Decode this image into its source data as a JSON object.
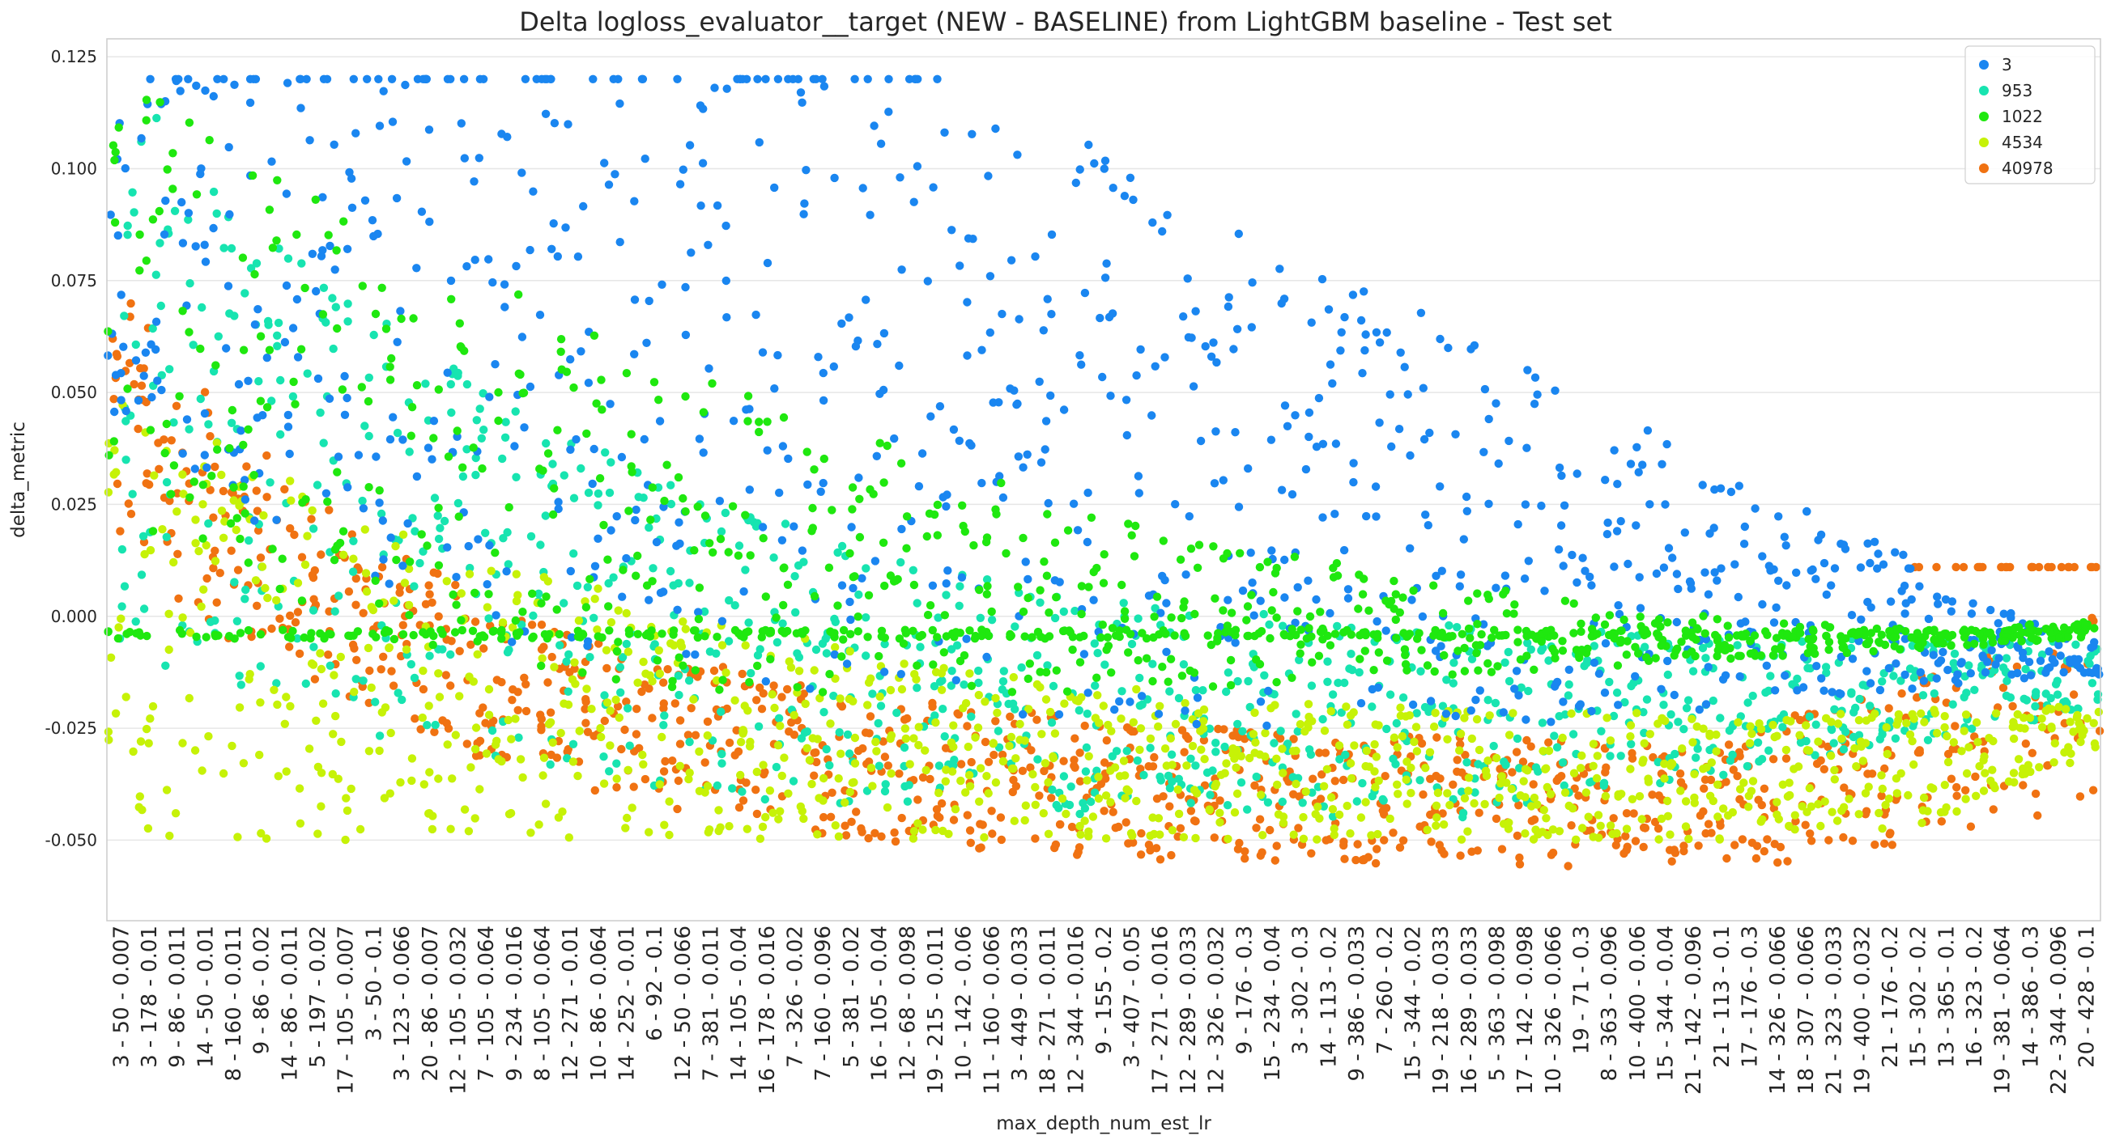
{
  "chart_data": {
    "type": "scatter",
    "title": "Delta logloss_evaluator__target (NEW - BASELINE) from LightGBM baseline - Test set",
    "xlabel": "max_depth_num_est_lr",
    "ylabel": "delta_metric",
    "ylim": [
      -0.068,
      0.129
    ],
    "yticks": [
      0.125,
      0.1,
      0.075,
      0.05,
      0.025,
      0.0,
      -0.025,
      -0.05
    ],
    "ytick_labels": [
      "0.125",
      "0.100",
      "0.075",
      "0.050",
      "0.025",
      "0.000",
      "-0.025",
      "-0.050"
    ],
    "grid": "horizontal",
    "legend_position": "top-right",
    "categories": [
      "3 - 50 - 0.007",
      "3 - 178 - 0.01",
      "9 - 86 - 0.011",
      "14 - 50 - 0.01",
      "8 - 160 - 0.011",
      "9 - 86 - 0.02",
      "14 - 86 - 0.011",
      "5 - 197 - 0.02",
      "17 - 105 - 0.007",
      "3 - 50 - 0.1",
      "3 - 123 - 0.066",
      "20 - 86 - 0.007",
      "12 - 105 - 0.032",
      "7 - 105 - 0.064",
      "9 - 234 - 0.016",
      "8 - 105 - 0.064",
      "12 - 271 - 0.01",
      "10 - 86 - 0.064",
      "14 - 252 - 0.01",
      "6 - 92 - 0.1",
      "12 - 50 - 0.066",
      "7 - 381 - 0.011",
      "14 - 105 - 0.04",
      "16 - 178 - 0.016",
      "7 - 326 - 0.02",
      "7 - 160 - 0.096",
      "5 - 381 - 0.02",
      "16 - 105 - 0.04",
      "12 - 68 - 0.098",
      "19 - 215 - 0.011",
      "10 - 142 - 0.06",
      "11 - 160 - 0.066",
      "3 - 449 - 0.033",
      "18 - 271 - 0.011",
      "12 - 344 - 0.016",
      "9 - 155 - 0.2",
      "3 - 407 - 0.05",
      "17 - 271 - 0.016",
      "12 - 289 - 0.033",
      "12 - 326 - 0.032",
      "9 - 176 - 0.3",
      "15 - 234 - 0.04",
      "3 - 302 - 0.3",
      "14 - 113 - 0.2",
      "9 - 386 - 0.033",
      "7 - 260 - 0.2",
      "15 - 344 - 0.02",
      "19 - 218 - 0.033",
      "16 - 289 - 0.033",
      "5 - 363 - 0.098",
      "17 - 142 - 0.098",
      "10 - 326 - 0.066",
      "19 - 71 - 0.3",
      "8 - 363 - 0.096",
      "10 - 400 - 0.06",
      "15 - 344 - 0.04",
      "21 - 142 - 0.096",
      "21 - 113 - 0.1",
      "17 - 176 - 0.3",
      "14 - 326 - 0.066",
      "18 - 307 - 0.066",
      "21 - 323 - 0.033",
      "19 - 400 - 0.032",
      "21 - 176 - 0.2",
      "15 - 302 - 0.2",
      "13 - 365 - 0.1",
      "16 - 323 - 0.2",
      "19 - 381 - 0.064",
      "14 - 386 - 0.3",
      "22 - 344 - 0.096",
      "20 - 428 - 0.1"
    ],
    "series": [
      {
        "name": "3",
        "color": "#1a86f0"
      },
      {
        "name": "953",
        "color": "#17e4b0"
      },
      {
        "name": "1022",
        "color": "#1fe80f"
      },
      {
        "name": "4534",
        "color": "#c6f207"
      },
      {
        "name": "40978",
        "color": "#f07212"
      }
    ]
  }
}
